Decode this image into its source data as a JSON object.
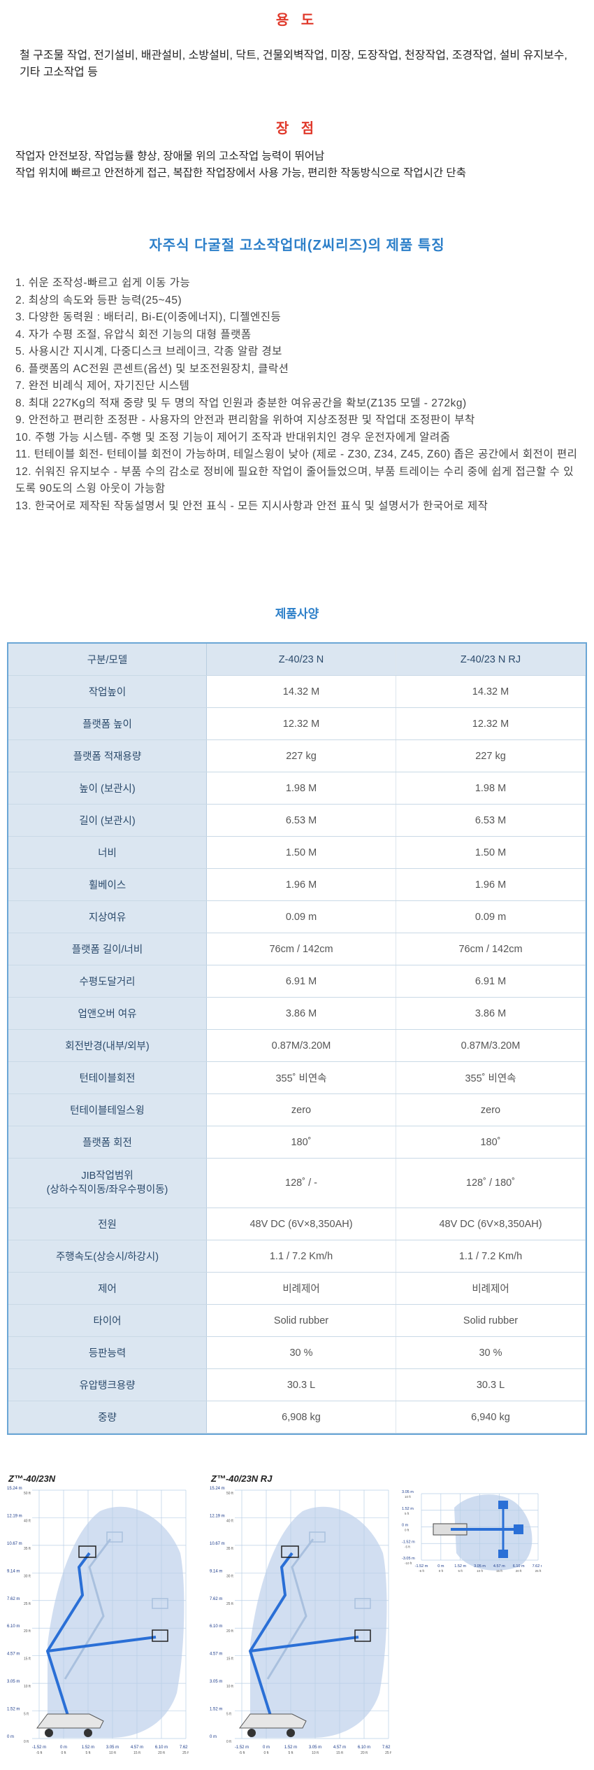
{
  "uses": {
    "title": "용 도",
    "text": "철 구조물 작업, 전기설비, 배관설비, 소방설비, 닥트, 건물외벽작업, 미장, 도장작업, 천장작업, 조경작업, 설비 유지보수, 기타 고소작업 등"
  },
  "advantages": {
    "title": "장 점",
    "lines": [
      "작업자 안전보장, 작업능률 향상, 장애물 위의 고소작업 능력이 뛰어남",
      "작업 위치에 빠르고 안전하게 접근, 복잡한 작업장에서 사용 가능, 편리한 작동방식으로 작업시간 단축"
    ]
  },
  "features": {
    "title": "자주식 다굴절 고소작업대(Z씨리즈)의 제품 특징",
    "items": [
      "1. 쉬운 조작성-빠르고 쉽게 이동 가능",
      "2. 최상의 속도와 등판 능력(25~45)",
      "3. 다양한 동력원 : 배터리, Bi-E(이중에너지), 디젤엔진등",
      "4. 자가 수평 조절, 유압식 회전 기능의 대형 플랫폼",
      "5. 사용시간 지시계, 다중디스크 브레이크, 각종 알람 경보",
      "6. 플랫폼의 AC전원 콘센트(옵션) 및 보조전원장치, 클락션",
      "7. 완전 비례식 제어, 자기진단 시스템",
      "8. 최대 227Kg의 적재 중량 및 두 명의 작업 인원과 충분한 여유공간을 확보(Z135 모델 - 272kg)",
      "9. 안전하고 편리한 조정판 - 사용자의 안전과 편리함을 위하여 지상조정판 및 작업대 조정판이 부착",
      "10. 주행 가능 시스템- 주행 및 조정 기능이 제어기 조작과 반대위치인 경우 운전자에게 알려줌",
      "11. 턴테이블 회전- 턴테이블 회전이 가능하며, 테일스윙이 낮아 (제로 - Z30, Z34, Z45, Z60) 좁은 공간에서 회전이 편리",
      "12. 쉬워진 유지보수 - 부품 수의 감소로 정비에 필요한 작업이 줄어들었으며, 부품 트레이는 수리 중에 쉽게 접근할 수 있도록 90도의 스윙 아웃이 가능함",
      "13. 한국어로 제작된 작동설명서 및 안전 표식 - 모든 지시사항과 안전 표식 및 설명서가 한국어로 제작"
    ]
  },
  "spec": {
    "title": "제품사양",
    "header": [
      "구분/모델",
      "Z-40/23 N",
      "Z-40/23 N RJ"
    ],
    "rows": [
      [
        "작업높이",
        "14.32 M",
        "14.32 M"
      ],
      [
        "플랫폼 높이",
        "12.32 M",
        "12.32 M"
      ],
      [
        "플랫폼 적재용량",
        "227 kg",
        "227 kg"
      ],
      [
        "높이 (보관시)",
        "1.98 M",
        "1.98 M"
      ],
      [
        "길이 (보관시)",
        "6.53 M",
        "6.53 M"
      ],
      [
        "너비",
        "1.50 M",
        "1.50 M"
      ],
      [
        "휠베이스",
        "1.96 M",
        "1.96 M"
      ],
      [
        "지상여유",
        "0.09 m",
        "0.09 m"
      ],
      [
        "플랫폼 길이/너비",
        "76cm / 142cm",
        "76cm / 142cm"
      ],
      [
        "수평도달거리",
        "6.91 M",
        "6.91 M"
      ],
      [
        "업앤오버 여유",
        "3.86 M",
        "3.86 M"
      ],
      [
        "회전반경(내부/외부)",
        "0.87M/3.20M",
        "0.87M/3.20M"
      ],
      [
        "턴테이블회전",
        "355˚ 비연속",
        "355˚ 비연속"
      ],
      [
        "턴테이블테일스윙",
        "zero",
        "zero"
      ],
      [
        "플랫폼 회전",
        "180˚",
        "180˚"
      ],
      [
        "JIB작업범위\n(상하수직이동/좌우수평이동)",
        "128˚ / -",
        "128˚ / 180˚"
      ],
      [
        "전원",
        "48V DC (6V×8,350AH)",
        "48V DC (6V×8,350AH)"
      ],
      [
        "주행속도(상승시/하강시)",
        "1.1 / 7.2 Km/h",
        "1.1 / 7.2 Km/h"
      ],
      [
        "제어",
        "비례제어",
        "비례제어"
      ],
      [
        "타이어",
        "Solid rubber",
        "Solid rubber"
      ],
      [
        "등판능력",
        "30 %",
        "30 %"
      ],
      [
        "유압탱크용량",
        "30.3 L",
        "30.3 L"
      ],
      [
        "중량",
        "6,908 kg",
        "6,940 kg"
      ]
    ]
  },
  "diagrams": {
    "left_title": "Z™-40/23N",
    "mid_title": "Z™-40/23N RJ",
    "y_labels_m": [
      "15.24 m",
      "12.19 m",
      "10.67 m",
      "9.14 m",
      "7.62 m",
      "6.10 m",
      "4.57 m",
      "3.05 m",
      "1.52 m",
      "0 m"
    ],
    "y_labels_ft": [
      "50 ft",
      "40 ft",
      "35 ft",
      "30 ft",
      "25 ft",
      "20 ft",
      "15 ft",
      "10 ft",
      "5 ft",
      "0 ft"
    ],
    "x_labels_m": [
      "-1.52 m",
      "0 m",
      "1.52 m",
      "3.05 m",
      "4.57 m",
      "6.10 m",
      "7.62 m"
    ],
    "x_labels_ft": [
      "-5 ft",
      "0 ft",
      "5 ft",
      "10 ft",
      "15 ft",
      "20 ft",
      "25 ft"
    ],
    "top_y_m": [
      "3.05 m",
      "1.52 m",
      "0 m",
      "-1.52 m",
      "-3.05 m"
    ],
    "top_y_ft": [
      "10 ft",
      "5 ft",
      "0 ft",
      "-5 ft",
      "-10 ft"
    ],
    "top_x_m": [
      "-1.52 m",
      "0 m",
      "1.52 m",
      "3.05 m",
      "4.57 m",
      "6.10 m",
      "7.62 m"
    ],
    "top_x_ft": [
      "-5 ft",
      "0 ft",
      "5 ft",
      "10 ft",
      "15 ft",
      "20 ft",
      "25 ft"
    ],
    "colors": {
      "envelope": "#c9d8ee",
      "machine": "#2a6fd6",
      "grid": "#b9cfe6"
    }
  }
}
